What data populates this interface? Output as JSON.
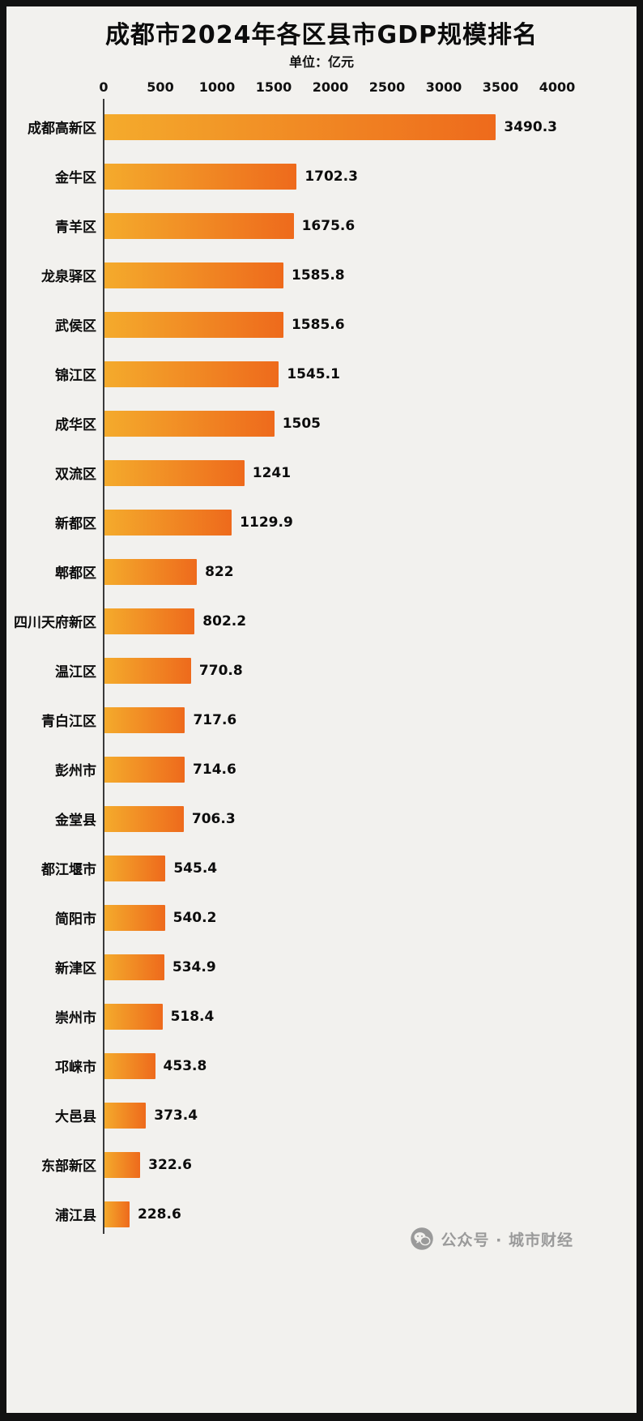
{
  "title": "成都市2024年各区县市GDP规模排名",
  "subtitle": "单位：亿元",
  "chart_data": {
    "type": "bar",
    "orientation": "horizontal",
    "title": "成都市2024年各区县市GDP规模排名",
    "unit": "亿元",
    "xlim": [
      0,
      4000
    ],
    "axis_ticks": [
      "0",
      "500",
      "1000",
      "1500",
      "2000",
      "2500",
      "3000",
      "3500",
      "4000"
    ],
    "grid": false,
    "legend": "none",
    "categories": [
      "成都高新区",
      "金牛区",
      "青羊区",
      "龙泉驿区",
      "武侯区",
      "锦江区",
      "成华区",
      "双流区",
      "新都区",
      "郫都区",
      "四川天府新区",
      "温江区",
      "青白江区",
      "彭州市",
      "金堂县",
      "都江堰市",
      "简阳市",
      "新津区",
      "崇州市",
      "邛崃市",
      "大邑县",
      "东部新区",
      "浦江县"
    ],
    "values": [
      3490.3,
      1702.3,
      1675.6,
      1585.8,
      1585.6,
      1545.1,
      1505,
      1241,
      1129.9,
      822,
      802.2,
      770.8,
      717.6,
      714.6,
      706.3,
      545.4,
      540.2,
      534.9,
      518.4,
      453.8,
      373.4,
      322.6,
      228.6
    ],
    "bar_color_start": "#f4ab2c",
    "bar_color_end": "#ee6a1c",
    "background_color": "#f2f1ee",
    "frame_color": "#121212",
    "axis_line_color": "#3a3a3a"
  },
  "watermark": {
    "icon": "wechat-icon",
    "text": "公众号 · 城市财经"
  }
}
